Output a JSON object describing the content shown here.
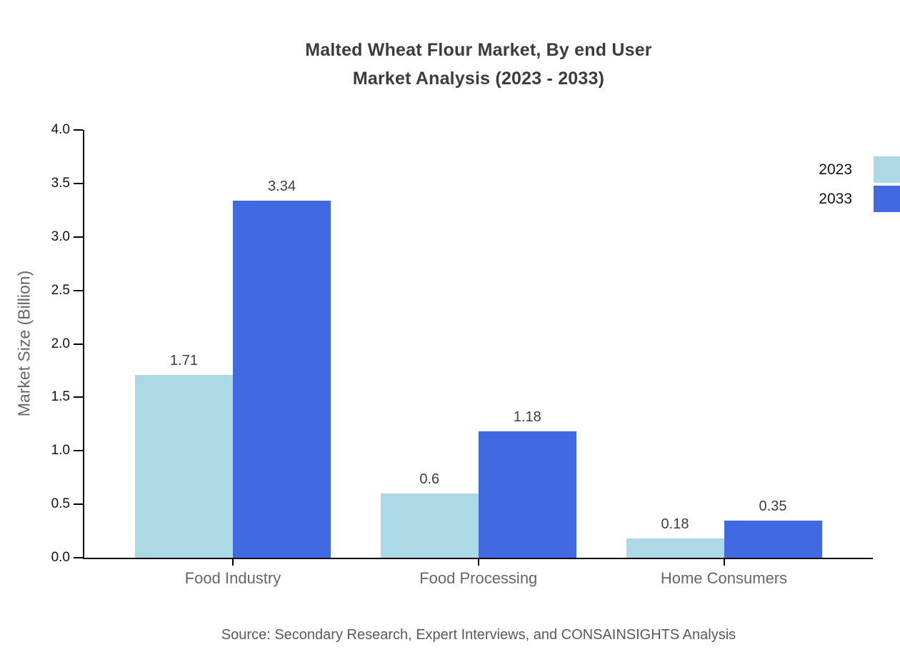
{
  "chart_data": {
    "type": "bar",
    "title": "Malted Wheat Flour Market, By end User Market Analysis (2023 - 2033)",
    "title_lines": [
      "Malted Wheat Flour Market, By end User",
      "Market Analysis (2023 - 2033)"
    ],
    "categories": [
      "Food Industry",
      "Food Processing",
      "Home Consumers"
    ],
    "series": [
      {
        "name": "2023",
        "color": "#ADD8E6",
        "values": [
          1.71,
          0.6,
          0.18
        ]
      },
      {
        "name": "2033",
        "color": "#4169E1",
        "values": [
          3.34,
          1.18,
          0.35
        ]
      }
    ],
    "xlabel": "",
    "ylabel": "Market Size (Billion)",
    "ylim": [
      0,
      4.0
    ],
    "ytick_step": 0.5,
    "grid": false,
    "legend_position": "top-right",
    "value_labels": true,
    "source": "Source: Secondary Research, Expert Interviews, and CONSAINSIGHTS Analysis",
    "axis_color": "#000000",
    "text_color_dark": "#3d3d3d",
    "text_color_gray": "#666666"
  }
}
